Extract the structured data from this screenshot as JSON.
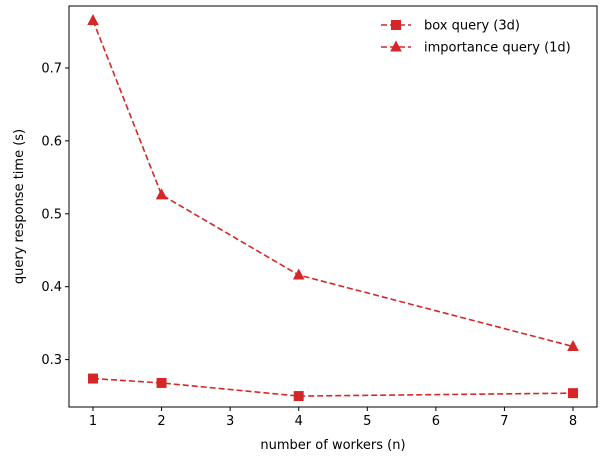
{
  "chart_data": {
    "type": "line",
    "xlabel": "number of workers (n)",
    "ylabel": "query response time (s)",
    "xlim": [
      0.65,
      8.35
    ],
    "ylim": [
      0.235,
      0.785
    ],
    "xticks": [
      1,
      2,
      3,
      4,
      5,
      6,
      7,
      8
    ],
    "xtick_labels": [
      "1",
      "2",
      "3",
      "4",
      "5",
      "6",
      "7",
      "8"
    ],
    "yticks": [
      0.3,
      0.4,
      0.5,
      0.6,
      0.7
    ],
    "ytick_labels": [
      "0.3",
      "0.4",
      "0.5",
      "0.6",
      "0.7"
    ],
    "grid": false,
    "legend_position": "top-right",
    "series": [
      {
        "name": "box query (3d)",
        "marker": "square",
        "line_style": "dashed",
        "color": "#d62728",
        "x": [
          1,
          2,
          4,
          8
        ],
        "y": [
          0.274,
          0.268,
          0.25,
          0.254
        ]
      },
      {
        "name": "importance query (1d)",
        "marker": "triangle",
        "line_style": "dashed",
        "color": "#d62728",
        "x": [
          1,
          2,
          4,
          8
        ],
        "y": [
          0.765,
          0.526,
          0.416,
          0.318
        ]
      }
    ]
  }
}
